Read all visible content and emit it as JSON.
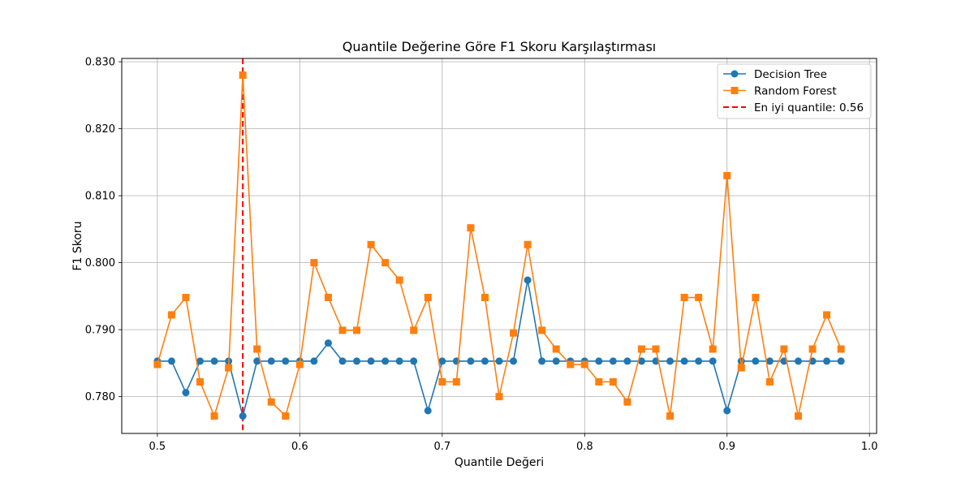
{
  "chart_data": {
    "type": "line",
    "title": "Quantile Değerine Göre F1 Skoru Karşılaştırması",
    "xlabel": "Quantile Değeri",
    "ylabel": "F1 Skoru",
    "xlim": [
      0.475,
      1.005
    ],
    "ylim": [
      0.7745,
      0.8305
    ],
    "xticks": [
      0.5,
      0.6,
      0.7,
      0.8,
      0.9,
      1.0
    ],
    "xtick_labels": [
      "0.5",
      "0.6",
      "0.7",
      "0.8",
      "0.9",
      "1.0"
    ],
    "yticks": [
      0.78,
      0.79,
      0.8,
      0.81,
      0.82,
      0.83
    ],
    "ytick_labels": [
      "0.780",
      "0.790",
      "0.800",
      "0.810",
      "0.820",
      "0.830"
    ],
    "grid": true,
    "legend_position": "top-right",
    "x": [
      0.5,
      0.51,
      0.52,
      0.53,
      0.54,
      0.55,
      0.56,
      0.57,
      0.58,
      0.59,
      0.6,
      0.61,
      0.62,
      0.63,
      0.64,
      0.65,
      0.66,
      0.67,
      0.68,
      0.69,
      0.7,
      0.71,
      0.72,
      0.73,
      0.74,
      0.75,
      0.76,
      0.77,
      0.78,
      0.79,
      0.8,
      0.81,
      0.82,
      0.83,
      0.84,
      0.85,
      0.86,
      0.87,
      0.88,
      0.89,
      0.9,
      0.91,
      0.92,
      0.93,
      0.94,
      0.95,
      0.96,
      0.97,
      0.98
    ],
    "series": [
      {
        "name": "Decision Tree",
        "color": "#1f77b4",
        "marker": "circle",
        "values": [
          0.7853,
          0.7853,
          0.7806,
          0.7853,
          0.7853,
          0.7853,
          0.7771,
          0.7853,
          0.7853,
          0.7853,
          0.7853,
          0.7853,
          0.788,
          0.7853,
          0.7853,
          0.7853,
          0.7853,
          0.7853,
          0.7853,
          0.7779,
          0.7853,
          0.7853,
          0.7853,
          0.7853,
          0.7853,
          0.7853,
          0.7974,
          0.7853,
          0.7853,
          0.7853,
          0.7853,
          0.7853,
          0.7853,
          0.7853,
          0.7853,
          0.7853,
          0.7853,
          0.7853,
          0.7853,
          0.7853,
          0.7779,
          0.7853,
          0.7853,
          0.7853,
          0.7853,
          0.7853,
          0.7853,
          0.7853,
          0.7853
        ]
      },
      {
        "name": "Random Forest",
        "color": "#ff7f0e",
        "marker": "square",
        "values": [
          0.7848,
          0.7922,
          0.7948,
          0.7822,
          0.7771,
          0.7843,
          0.828,
          0.7871,
          0.7792,
          0.7771,
          0.7848,
          0.8,
          0.7948,
          0.7899,
          0.7899,
          0.8027,
          0.8,
          0.7974,
          0.7899,
          0.7948,
          0.7822,
          0.7822,
          0.8052,
          0.7948,
          0.78,
          0.7895,
          0.8027,
          0.7899,
          0.7871,
          0.7848,
          0.7848,
          0.7822,
          0.7822,
          0.7792,
          0.7871,
          0.7871,
          0.7771,
          0.7948,
          0.7948,
          0.7871,
          0.813,
          0.7843,
          0.7948,
          0.7822,
          0.7871,
          0.7771,
          0.7871,
          0.7922,
          0.7871
        ]
      }
    ],
    "reference_line": {
      "name": "En iyi quantile: 0.56",
      "x": 0.56,
      "color": "#ff0000",
      "style": "dashed"
    }
  }
}
